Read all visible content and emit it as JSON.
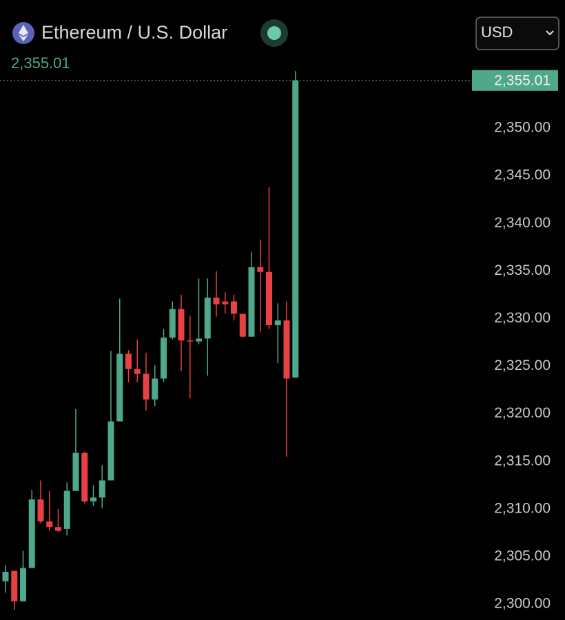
{
  "currency_selector": "USD",
  "chart_data": {
    "type": "candlestick",
    "title": "Ethereum / U.S. Dollar",
    "last": {
      "value": 2355.01,
      "label": "2,355.01"
    },
    "up_color": "#4fa88c",
    "down_color": "#e84142",
    "open": [
      2302.4,
      2303.5,
      2300.3,
      2303.8,
      2311,
      2308.7,
      2308.1,
      2307.9,
      2311.9,
      2315.9,
      2310.8,
      2311.2,
      2313,
      2319.2,
      2326.3,
      2324.7,
      2324.2,
      2321.5,
      2323.7,
      2328,
      2331,
      2327.7,
      2327.6,
      2327.9,
      2332.2,
      2331.8,
      2331.8,
      2330.5,
      2328.1,
      2335.4,
      2334.9,
      2329.3,
      2329.8,
      2323.8
    ],
    "high": [
      2304.1,
      2303.5,
      2305.6,
      2312,
      2313,
      2311.9,
      2310,
      2312.8,
      2320.5,
      2316,
      2312.5,
      2314.6,
      2326.6,
      2332.1,
      2326.7,
      2327.8,
      2326.4,
      2325.1,
      2328.9,
      2331.8,
      2332.5,
      2330.3,
      2334.2,
      2334.2,
      2335,
      2332.8,
      2332.5,
      2330.5,
      2337,
      2338.3,
      2343.8,
      2331.6,
      2331.8,
      2356
    ],
    "low": [
      2301.2,
      2299.4,
      2300.3,
      2303.8,
      2308.5,
      2307.7,
      2307.6,
      2307.2,
      2311.9,
      2310.6,
      2310.3,
      2310.1,
      2313,
      2319.2,
      2323.3,
      2323.3,
      2320.3,
      2320.8,
      2323.3,
      2327.8,
      2324.5,
      2321.6,
      2327.3,
      2324,
      2330.2,
      2330.5,
      2329.8,
      2328,
      2328.1,
      2328.6,
      2328.9,
      2325.3,
      2315.5,
      2323.8
    ],
    "close": [
      2303.4,
      2300.3,
      2303.8,
      2311,
      2308.7,
      2308.1,
      2307.7,
      2311.9,
      2315.9,
      2310.8,
      2311.2,
      2313,
      2319.2,
      2326.3,
      2324.7,
      2324.2,
      2321.5,
      2323.7,
      2328,
      2331,
      2327.7,
      2327.6,
      2327.9,
      2332.2,
      2331.5,
      2331.5,
      2330.5,
      2328.1,
      2335.4,
      2334.9,
      2329.3,
      2329.8,
      2323.7,
      2355.01
    ],
    "ylim": [
      2298.34,
      2363.46
    ],
    "yticks": [
      {
        "value": 2300,
        "label": "2,300.00"
      },
      {
        "value": 2305,
        "label": "2,305.00"
      },
      {
        "value": 2310,
        "label": "2,310.00"
      },
      {
        "value": 2315,
        "label": "2,315.00"
      },
      {
        "value": 2320,
        "label": "2,320.00"
      },
      {
        "value": 2325,
        "label": "2,325.00"
      },
      {
        "value": 2330,
        "label": "2,330.00"
      },
      {
        "value": 2335,
        "label": "2,335.00"
      },
      {
        "value": 2340,
        "label": "2,340.00"
      },
      {
        "value": 2345,
        "label": "2,345.00"
      },
      {
        "value": 2350,
        "label": "2,350.00"
      }
    ]
  }
}
